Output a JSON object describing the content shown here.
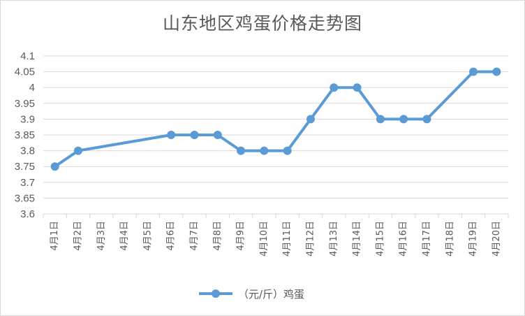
{
  "chart_data": {
    "type": "line",
    "title": "山东地区鸡蛋价格走势图",
    "categories": [
      "4月1日",
      "4月2日",
      "4月3日",
      "4月4日",
      "4月5日",
      "4月6日",
      "4月7日",
      "4月8日",
      "4月9日",
      "4月10日",
      "4月11日",
      "4月12日",
      "4月13日",
      "4月14日",
      "4月15日",
      "4月16日",
      "4月17日",
      "4月18日",
      "4月19日",
      "4月20日"
    ],
    "series": [
      {
        "name": "（元/斤）鸡蛋",
        "color": "#5b9bd5",
        "values": [
          3.75,
          3.8,
          null,
          null,
          null,
          3.85,
          3.85,
          3.85,
          3.8,
          3.8,
          3.8,
          3.9,
          4.0,
          4.0,
          3.9,
          3.9,
          3.9,
          null,
          4.05,
          4.05
        ]
      }
    ],
    "y_ticks": [
      "3.6",
      "3.65",
      "3.7",
      "3.75",
      "3.8",
      "3.85",
      "3.9",
      "3.95",
      "4",
      "4.05",
      "4.1"
    ],
    "ylim": [
      3.6,
      4.1
    ],
    "grid": true,
    "legend": "bottom"
  }
}
